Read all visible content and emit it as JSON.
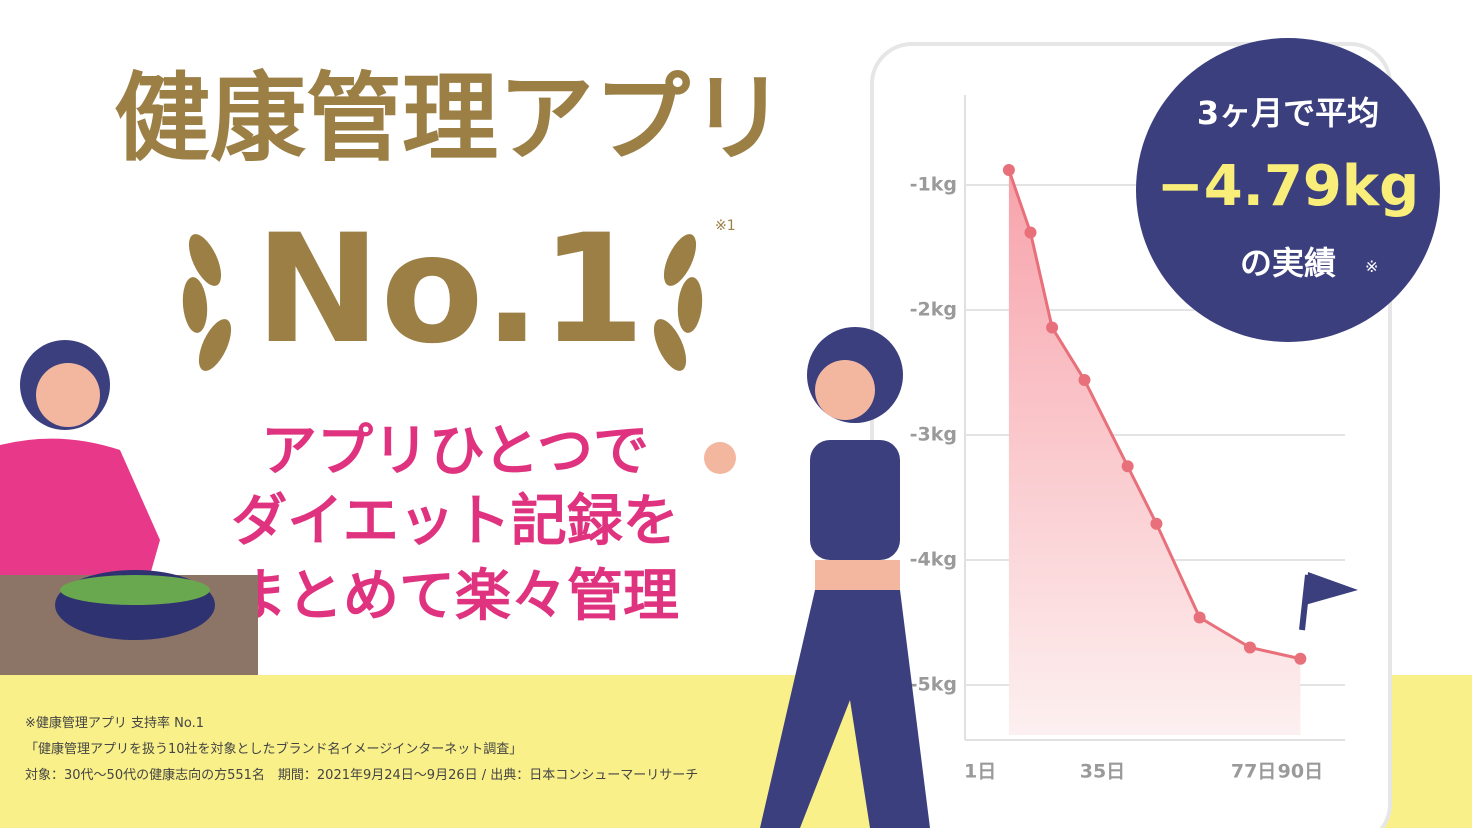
{
  "headline": {
    "title": "健康管理アプリ",
    "rank": "No.1",
    "note_mark": "※1"
  },
  "tagline": [
    "アプリひとつで",
    "ダイエット記録を",
    "まとめて楽々管理"
  ],
  "badge": {
    "line1": "3ヶ月で平均",
    "result": "−4.79kg",
    "line3": "の実績",
    "note_mark": "※"
  },
  "footnotes": [
    "※健康管理アプリ 支持率 No.1",
    "「健康管理アプリを扱う10社を対象としたブランド名イメージインターネット調査」",
    "対象：30代〜50代の健康志向の方551名　期間：2021年9月24日〜9月26日 / 出典：日本コンシューマーリサーチ"
  ],
  "chart_data": {
    "type": "line",
    "x": [
      9,
      15,
      21,
      30,
      42,
      50,
      62,
      76,
      90
    ],
    "series": [
      {
        "color": "#e8707a",
        "values": [
          -0.88,
          -1.38,
          -2.14,
          -2.56,
          -3.25,
          -3.71,
          -4.46,
          -4.7,
          -4.79
        ]
      }
    ],
    "xlim": [
      -3.2,
      102.4
    ],
    "ylim": [
      -5.4,
      -0.3
    ],
    "xticks": [
      {
        "value": 1,
        "label": "1日"
      },
      {
        "value": 35,
        "label": "35日"
      },
      {
        "value": 77,
        "label": "77日"
      },
      {
        "value": 90,
        "label": "90日"
      }
    ],
    "yticks": [
      {
        "value": -1,
        "label": "-1kg"
      },
      {
        "value": -2,
        "label": "-2kg"
      },
      {
        "value": -3,
        "label": "-3kg"
      },
      {
        "value": -4,
        "label": "-4kg"
      },
      {
        "value": -5,
        "label": "-5kg"
      }
    ],
    "grid": true
  }
}
